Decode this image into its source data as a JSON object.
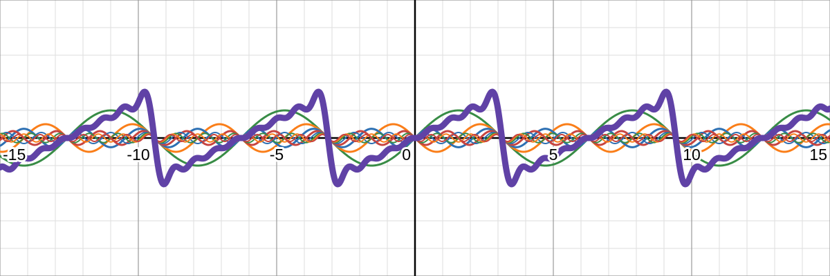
{
  "chart_data": {
    "type": "line",
    "title": "",
    "xlabel": "",
    "ylabel": "",
    "xlim": [
      -15,
      15
    ],
    "ylim": [
      -5,
      5
    ],
    "grid": true,
    "x_ticks": [
      {
        "value": -15,
        "label": "-15"
      },
      {
        "value": -10,
        "label": "-10"
      },
      {
        "value": -5,
        "label": "-5"
      },
      {
        "value": 0,
        "label": "0"
      },
      {
        "value": 5,
        "label": "5"
      },
      {
        "value": 10,
        "label": "10"
      },
      {
        "value": 15,
        "label": "15"
      }
    ],
    "series": [
      {
        "key": "sine-fundamental",
        "expression": "sin(x)",
        "amplitude": 1,
        "frequency": 1,
        "color": "#388c46",
        "width": 3
      },
      {
        "key": "sine-harmonic-2",
        "expression": "-sin(2x)/2",
        "amplitude": -0.5,
        "frequency": 2,
        "color": "#fa7e19",
        "width": 3
      },
      {
        "key": "sine-harmonic-3",
        "expression": "sin(3x)/3",
        "amplitude": 0.3333,
        "frequency": 3,
        "color": "#2d70b3",
        "width": 3
      },
      {
        "key": "sine-harmonic-4",
        "expression": "-sin(4x)/4",
        "amplitude": -0.25,
        "frequency": 4,
        "color": "#c74440",
        "width": 3
      },
      {
        "key": "sine-harmonic-5",
        "expression": "sin(5x)/5",
        "amplitude": 0.2,
        "frequency": 5,
        "color": "#2d70b3",
        "width": 2
      },
      {
        "key": "sine-harmonic-6",
        "expression": "-sin(6x)/6",
        "amplitude": -0.1667,
        "frequency": 6,
        "color": "#388c46",
        "width": 2
      },
      {
        "key": "sine-harmonic-7",
        "expression": "sin(7x)/7",
        "amplitude": 0.1429,
        "frequency": 7,
        "color": "#fa7e19",
        "width": 2
      },
      {
        "key": "sine-harmonic-8",
        "expression": "-sin(8x)/8",
        "amplitude": -0.125,
        "frequency": 8,
        "color": "#c74440",
        "width": 2
      },
      {
        "key": "fourier-sum",
        "expression": "sum of harmonics",
        "color": "#6042a6",
        "width": 9,
        "is_sum": true
      }
    ]
  },
  "colors": {
    "axis": "#000000",
    "major_grid": "#999999",
    "minor_grid": "#dddddd",
    "background": "#ffffff"
  }
}
